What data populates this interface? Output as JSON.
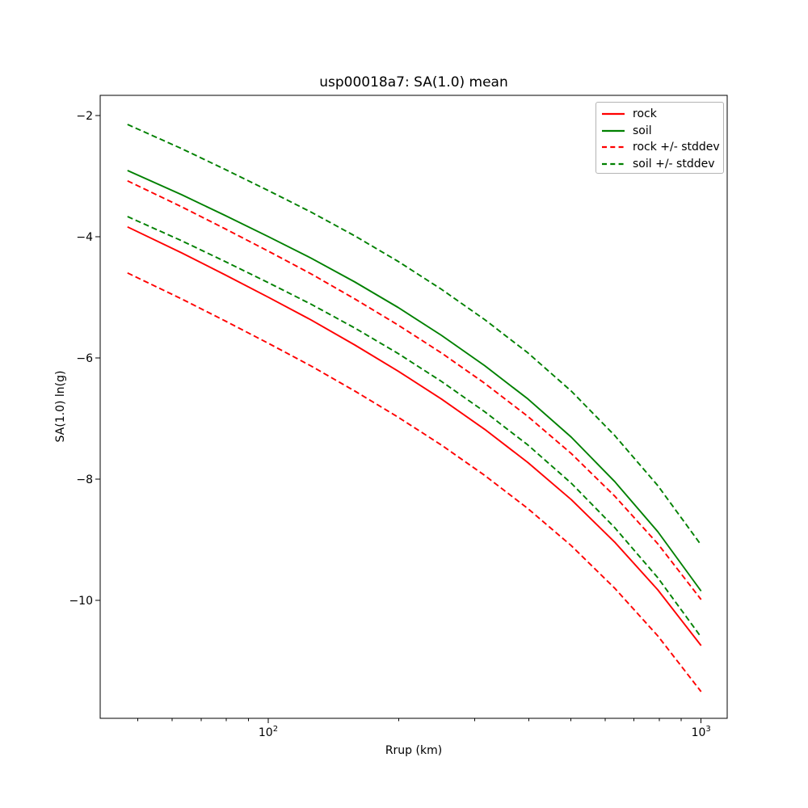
{
  "chart_data": {
    "type": "line",
    "title": "usp00018a7: SA(1.0) mean",
    "xlabel": "Rrup (km)",
    "ylabel": "SA(1.0) ln(g)",
    "x_scale": "log",
    "y_scale": "linear",
    "grid": false,
    "xlim": [
      40.9,
      1149
    ],
    "ylim": [
      -11.95,
      -1.67
    ],
    "x_major_ticks": [
      100,
      1000
    ],
    "x_major_tick_labels": [
      {
        "mantissa": "10",
        "exponent": "2"
      },
      {
        "mantissa": "10",
        "exponent": "3"
      }
    ],
    "x_minor_ticks": [
      50,
      60,
      70,
      80,
      90,
      200,
      300,
      400,
      500,
      600,
      700,
      800,
      900
    ],
    "y_ticks": [
      -2,
      -4,
      -6,
      -8,
      -10
    ],
    "y_tick_labels": [
      "−2",
      "−4",
      "−6",
      "−8",
      "−10"
    ],
    "stddev": 0.76,
    "x": [
      47.3,
      63.1,
      79.4,
      100,
      125.9,
      158.5,
      199.5,
      251.2,
      316.2,
      398.1,
      501.2,
      631,
      794.3,
      1000
    ],
    "series": [
      {
        "name": "rock",
        "label": "rock",
        "color": "#ff0000",
        "linestyle": "solid",
        "values": [
          -3.84,
          -4.27,
          -4.63,
          -5.0,
          -5.38,
          -5.79,
          -6.22,
          -6.68,
          -7.18,
          -7.73,
          -8.34,
          -9.04,
          -9.83,
          -10.75
        ]
      },
      {
        "name": "soil",
        "label": "soil",
        "color": "#008000",
        "linestyle": "solid",
        "values": [
          -2.91,
          -3.31,
          -3.65,
          -4.0,
          -4.36,
          -4.75,
          -5.17,
          -5.63,
          -6.13,
          -6.68,
          -7.31,
          -8.04,
          -8.87,
          -9.85
        ]
      },
      {
        "name": "rock-plus-stddev",
        "label": "rock +/- stddev",
        "color": "#ff0000",
        "linestyle": "dashed",
        "values": [
          -3.08,
          -3.51,
          -3.87,
          -4.24,
          -4.62,
          -5.03,
          -5.46,
          -5.92,
          -6.42,
          -6.97,
          -7.58,
          -8.28,
          -9.07,
          -9.99
        ]
      },
      {
        "name": "rock-minus-stddev",
        "label": "rock +/- stddev",
        "color": "#ff0000",
        "linestyle": "dashed",
        "values": [
          -4.6,
          -5.03,
          -5.39,
          -5.76,
          -6.14,
          -6.55,
          -6.98,
          -7.44,
          -7.94,
          -8.49,
          -9.1,
          -9.8,
          -10.59,
          -11.51
        ]
      },
      {
        "name": "soil-plus-stddev",
        "label": "soil +/- stddev",
        "color": "#008000",
        "linestyle": "dashed",
        "values": [
          -2.15,
          -2.55,
          -2.89,
          -3.24,
          -3.6,
          -3.99,
          -4.41,
          -4.87,
          -5.37,
          -5.92,
          -6.55,
          -7.28,
          -8.11,
          -9.09
        ]
      },
      {
        "name": "soil-minus-stddev",
        "label": "soil +/- stddev",
        "color": "#008000",
        "linestyle": "dashed",
        "values": [
          -3.67,
          -4.07,
          -4.41,
          -4.76,
          -5.12,
          -5.51,
          -5.93,
          -6.39,
          -6.89,
          -7.44,
          -8.07,
          -8.8,
          -9.63,
          -10.61
        ]
      }
    ],
    "legend": {
      "position": "upper right",
      "entries": [
        {
          "label": "rock",
          "color": "#ff0000",
          "linestyle": "solid"
        },
        {
          "label": "soil",
          "color": "#008000",
          "linestyle": "solid"
        },
        {
          "label": "rock +/- stddev",
          "color": "#ff0000",
          "linestyle": "dashed"
        },
        {
          "label": "soil +/- stddev",
          "color": "#008000",
          "linestyle": "dashed"
        }
      ]
    },
    "colors": {
      "rock": "#ff0000",
      "soil": "#008000",
      "axes": "#000000",
      "background": "#ffffff"
    }
  }
}
